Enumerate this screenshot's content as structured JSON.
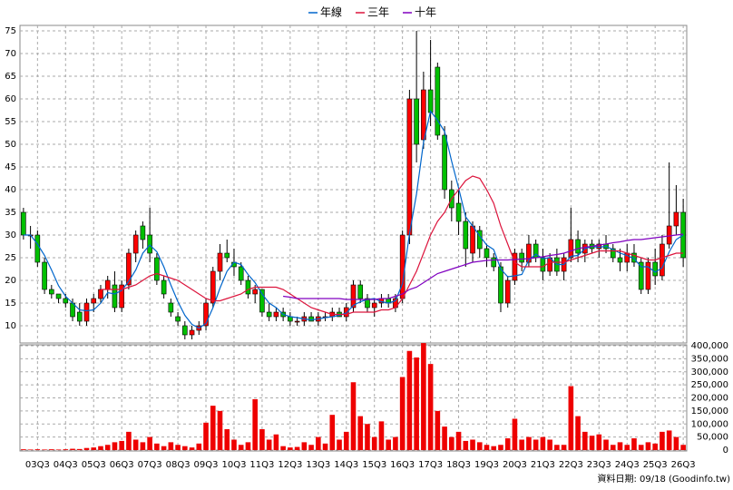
{
  "chart_data": {
    "type": "candlestick",
    "categories": [
      null,
      null,
      "03Q3",
      null,
      null,
      null,
      "04Q3",
      null,
      null,
      null,
      "05Q3",
      null,
      null,
      null,
      "06Q3",
      null,
      null,
      null,
      "07Q3",
      null,
      null,
      null,
      "08Q3",
      null,
      null,
      null,
      "09Q3",
      null,
      null,
      null,
      "10Q3",
      null,
      null,
      null,
      "11Q3",
      null,
      null,
      null,
      "12Q3",
      null,
      null,
      null,
      "13Q3",
      null,
      null,
      null,
      "14Q3",
      null,
      null,
      null,
      "15Q3",
      null,
      null,
      null,
      "16Q3",
      null,
      null,
      null,
      "17Q3",
      null,
      null,
      null,
      "18Q3",
      null,
      null,
      null,
      "19Q3",
      null,
      null,
      null,
      "20Q3",
      null,
      null,
      null,
      "21Q3",
      null,
      null,
      null,
      "22Q3",
      null,
      null,
      null,
      "23Q3",
      null,
      null,
      null,
      "24Q3",
      null,
      null,
      null,
      "25Q3",
      null,
      null,
      null,
      "26Q3"
    ],
    "open": [
      35,
      30,
      30,
      24,
      18,
      17,
      16,
      15,
      13,
      11,
      15,
      16,
      18,
      19,
      14,
      19,
      26,
      32,
      30,
      25,
      20,
      15,
      12,
      10,
      8,
      9,
      10,
      15,
      22,
      26,
      24,
      23,
      20,
      17,
      18,
      13,
      12,
      13,
      12,
      11,
      11,
      12,
      11,
      12,
      12,
      13,
      12,
      14,
      19,
      16,
      14,
      15,
      16,
      14,
      16,
      30,
      60,
      51,
      62,
      67,
      52,
      40,
      37,
      33,
      26,
      31,
      27,
      25,
      23,
      15,
      20,
      26,
      24,
      28,
      25,
      22,
      25,
      22,
      25,
      29,
      26,
      28,
      27,
      28,
      27,
      25,
      24,
      26,
      24,
      18,
      24,
      21,
      28,
      32,
      35
    ],
    "high": [
      36,
      32,
      31,
      25,
      19,
      17,
      17,
      16,
      15,
      16,
      17,
      19,
      21,
      22,
      20,
      27,
      31,
      33,
      36,
      26,
      21,
      16,
      13,
      11,
      10,
      11,
      16,
      23,
      28,
      29,
      27,
      24,
      21,
      19,
      18,
      15,
      14,
      14,
      13,
      12,
      13,
      13,
      13,
      13,
      14,
      14,
      15,
      20,
      20,
      17,
      16,
      17,
      17,
      17,
      31,
      62,
      75,
      66,
      73,
      68,
      54,
      42,
      40,
      35,
      33,
      32,
      28,
      26,
      24,
      21,
      27,
      27,
      30,
      29,
      27,
      26,
      27,
      26,
      36,
      31,
      29,
      29,
      29,
      30,
      28,
      27,
      28,
      28,
      25,
      25,
      27,
      30,
      46,
      41,
      38
    ],
    "low": [
      29,
      27,
      23,
      17,
      16,
      15,
      14,
      11,
      10,
      10,
      13,
      15,
      16,
      13,
      13,
      18,
      24,
      27,
      24,
      19,
      16,
      12,
      10,
      7,
      7,
      8,
      9,
      14,
      20,
      24,
      21,
      19,
      16,
      15,
      12,
      11,
      11,
      11,
      10,
      10,
      10,
      11,
      10,
      11,
      11,
      12,
      11,
      13,
      15,
      13,
      12,
      14,
      14,
      13,
      15,
      28,
      46,
      49,
      54,
      51,
      38,
      33,
      30,
      23,
      24,
      25,
      23,
      22,
      13,
      14,
      19,
      22,
      23,
      24,
      20,
      21,
      21,
      20,
      24,
      24,
      24,
      26,
      25,
      26,
      24,
      22,
      22,
      23,
      17,
      17,
      19,
      20,
      27,
      30,
      23
    ],
    "close": [
      30,
      30,
      24,
      18,
      17,
      16,
      15,
      12,
      11,
      15,
      16,
      18,
      20,
      14,
      19,
      26,
      30,
      29,
      26,
      20,
      17,
      13,
      11,
      8,
      9,
      10,
      15,
      22,
      26,
      25,
      23,
      20,
      17,
      18,
      13,
      12,
      13,
      12,
      11,
      11,
      12,
      11,
      12,
      12,
      13,
      12,
      14,
      19,
      16,
      14,
      15,
      16,
      15,
      16,
      30,
      60,
      50,
      62,
      57,
      52,
      40,
      36,
      33,
      27,
      32,
      27,
      25,
      23,
      15,
      20,
      26,
      24,
      28,
      25,
      22,
      25,
      22,
      25,
      29,
      26,
      28,
      27,
      28,
      27,
      25,
      24,
      26,
      24,
      18,
      24,
      21,
      28,
      32,
      35,
      25
    ],
    "up_color": "#ff0000",
    "down_color": "#00c000",
    "series": [
      {
        "name": "年線",
        "color": "#0066cc",
        "values": [
          30,
          30,
          28,
          25.5,
          22.3,
          18.8,
          16.5,
          15,
          13.5,
          13.3,
          13.5,
          15,
          17.3,
          17,
          17.8,
          19.8,
          22.3,
          26,
          27.8,
          26.3,
          23,
          19,
          15.3,
          12.3,
          10.3,
          9.5,
          10.5,
          14,
          18.3,
          22,
          24,
          23.5,
          21.3,
          19.5,
          17,
          15,
          14,
          12.5,
          12,
          11.8,
          11.5,
          11.3,
          11.5,
          11.8,
          12,
          12.3,
          12.8,
          14.5,
          15.3,
          15.8,
          16,
          15.3,
          15,
          15.5,
          19.3,
          30.3,
          39,
          50.5,
          57.3,
          55.3,
          52.8,
          46.3,
          40.3,
          34,
          32,
          29.8,
          27.8,
          26.8,
          22.5,
          20.8,
          21,
          21.3,
          24.5,
          25.8,
          24.8,
          25,
          23.5,
          23.5,
          25.3,
          25.5,
          27,
          27.5,
          27.3,
          27.5,
          26.8,
          26,
          25.5,
          24.8,
          23,
          23,
          21.8,
          22.8,
          26.3,
          29,
          30
        ]
      },
      {
        "name": "三年",
        "color": "#dc143c",
        "values": [
          null,
          null,
          null,
          null,
          null,
          null,
          null,
          null,
          null,
          null,
          null,
          18,
          18,
          18,
          18,
          18.5,
          19,
          20,
          21,
          21.5,
          21,
          20.5,
          20,
          19,
          18,
          17,
          16,
          15.5,
          15.5,
          16,
          16.5,
          17,
          18,
          18.5,
          18.5,
          18.5,
          18.5,
          18,
          17,
          16,
          15,
          14,
          13.5,
          13,
          12.5,
          12.5,
          12.5,
          13,
          13,
          13,
          13,
          13.5,
          13.5,
          14,
          16,
          19,
          22,
          26,
          30,
          33,
          35,
          38,
          40,
          42,
          43,
          42.5,
          40,
          37,
          32,
          28,
          24,
          23,
          23,
          23,
          23,
          24,
          24,
          24,
          24.5,
          25,
          25.5,
          26,
          26.5,
          26.5,
          26.5,
          26.5,
          26,
          25.5,
          25,
          24.5,
          24.5,
          25,
          25.5,
          26,
          26
        ]
      },
      {
        "name": "十年",
        "color": "#8000c0",
        "values": [
          null,
          null,
          null,
          null,
          null,
          null,
          null,
          null,
          null,
          null,
          null,
          null,
          null,
          null,
          null,
          null,
          null,
          null,
          null,
          null,
          null,
          null,
          null,
          null,
          null,
          null,
          null,
          null,
          null,
          null,
          null,
          null,
          null,
          null,
          null,
          null,
          null,
          16.5,
          16.3,
          16,
          16,
          16,
          16,
          16,
          16,
          16,
          15.8,
          15.8,
          15.8,
          15.8,
          15.8,
          16,
          16,
          16.5,
          17,
          18,
          18.5,
          19.5,
          20.5,
          21.5,
          22,
          22.5,
          23,
          23.5,
          24,
          24.2,
          24.4,
          24.5,
          24.5,
          24.5,
          24.6,
          24.7,
          24.8,
          25,
          25.2,
          25.5,
          25.7,
          26,
          26.5,
          27,
          27.3,
          27.5,
          27.8,
          28,
          28.3,
          28.5,
          28.8,
          29,
          29,
          29.2,
          29.4,
          29.6,
          29.8,
          30,
          30.2
        ]
      }
    ],
    "ylim": [
      6.2,
      76.2
    ],
    "yticks": [
      10,
      15,
      20,
      25,
      30,
      35,
      40,
      45,
      50,
      55,
      60,
      65,
      70,
      75
    ],
    "grid": true,
    "volume": {
      "type": "bar",
      "color": "#ee0000",
      "values": [
        3000,
        2000,
        3000,
        2000,
        3000,
        2000,
        3000,
        5000,
        4000,
        8000,
        10000,
        15000,
        20000,
        30000,
        35000,
        70000,
        40000,
        30000,
        50000,
        25000,
        15000,
        30000,
        20000,
        15000,
        10000,
        25000,
        105000,
        170000,
        150000,
        80000,
        40000,
        20000,
        30000,
        195000,
        80000,
        40000,
        60000,
        15000,
        10000,
        12000,
        30000,
        20000,
        50000,
        25000,
        135000,
        40000,
        70000,
        260000,
        130000,
        100000,
        50000,
        110000,
        40000,
        50000,
        280000,
        380000,
        355000,
        410000,
        330000,
        150000,
        90000,
        50000,
        70000,
        35000,
        40000,
        30000,
        20000,
        15000,
        20000,
        45000,
        120000,
        40000,
        50000,
        40000,
        50000,
        40000,
        20000,
        20000,
        245000,
        130000,
        70000,
        55000,
        60000,
        40000,
        20000,
        30000,
        20000,
        45000,
        20000,
        30000,
        25000,
        70000,
        75000,
        50000,
        20000
      ],
      "ylim": [
        0,
        400000
      ],
      "yticks": [
        0,
        {
          "value": 50000,
          "label": "50,000"
        },
        {
          "value": 100000,
          "label": "100,000"
        },
        {
          "value": 150000,
          "label": "150,000"
        },
        {
          "value": 200000,
          "label": "200,000"
        },
        {
          "value": 250000,
          "label": "250,000"
        },
        {
          "value": 300000,
          "label": "300,000"
        },
        {
          "value": 350000,
          "label": "350,000"
        },
        {
          "value": 400000,
          "label": "400,000"
        }
      ]
    },
    "footnote": "資料日期: 09/18 (Goodinfo.tw)"
  }
}
